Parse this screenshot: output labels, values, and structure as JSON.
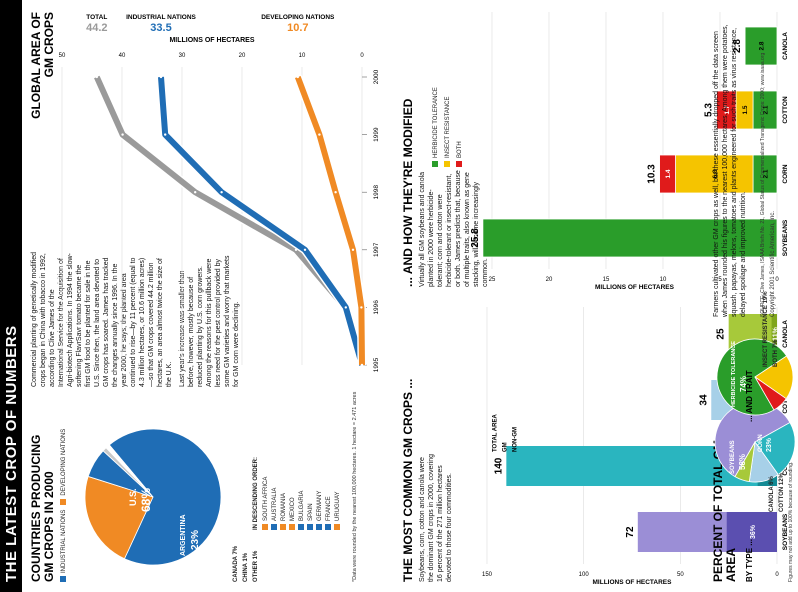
{
  "title": "THE LATEST CROP OF NUMBERS",
  "countries": {
    "heading": "COUNTRIES PRODUCING GM CROPS IN 2000",
    "legend": [
      "INDUSTRIAL NATIONS",
      "DEVELOPING NATIONS"
    ],
    "us_label": "U.S.",
    "us_pct": "68%",
    "argentina_label": "ARGENTINA",
    "argentina_pct": "23%",
    "canada": "CANADA 7%",
    "china": "CHINA 1%",
    "other": "OTHER 1%",
    "descending_title": "IN DESCENDING ORDER:",
    "descending": [
      "SOUTH AFRICA",
      "AUSTRALIA",
      "ROMANIA",
      "MEXICO",
      "BULGARIA",
      "SPAIN",
      "GERMANY",
      "FRANCE",
      "URUGUAY"
    ],
    "footnote": "*Data were rounded by the nearest 100,000 hectares.   1 hectare = 2.471 acres"
  },
  "intro": {
    "paragraph": "Commercial planting of genetically modified crops began in China with tobacco in 1992, according to Clive James of the International Service for the Acquisition of Agri-biotech Applications. In 1994 the slow-softening FlavrSavr tomato became the first GM food to be planted for sale in the U.S. Since then, the land area devoted to GM crops has soared. James has tracked the changes annually since 1996. In the year 2000, he says, the planted area continued to rise—by 11 percent (equal to 4.3 million hectares, or 10.6 million acres)—so that GM crops covered 44.2 million hectares, an area almost twice the size of the U.K.",
    "paragraph2": "Last year's increase was smaller than before, however, mostly because of reduced planting by U.S. corn growers. Among the reasons for this pullback were less need for the pest control provided by some GM varieties and worry that markets for GM corn were declining."
  },
  "common": {
    "heading": "THE MOST COMMON GM CROPS ...",
    "paragraph": "Soybeans, corn, cotton and canola were the dominant GM crops in 2000, covering 16 percent of the 271 million hectares devoted to those four commodities.",
    "legend": [
      "TOTAL AREA",
      "GM",
      "NON-GM"
    ],
    "ylabel": "MILLIONS OF HECTARES",
    "yticks": [
      "150",
      "100",
      "50",
      "0"
    ]
  },
  "modified": {
    "heading": "... AND HOW THEY'RE MODIFIED",
    "paragraph": "Virtually all GM soybeans and canola planted in 2000 were herbicide-tolerant; corn and cotton were herbicide-tolerant or insect-resistant, or both. James predicts that, because of multiple traits, also known as gene stacking, will become increasingly common.",
    "legend": [
      "HERBICIDE TOLERANCE",
      "INSECT RESISTANCE",
      "BOTH"
    ],
    "ylabel": "MILLIONS OF HECTARES",
    "yticks": [
      "25",
      "20",
      "15",
      "10",
      "5",
      "0"
    ]
  },
  "trend": {
    "heading": "GLOBAL AREA OF GM CROPS",
    "xlabel": "MILLIONS OF HECTARES",
    "xticks": [
      "50",
      "40",
      "30",
      "20",
      "10",
      "0"
    ],
    "years": [
      "1995",
      "1996",
      "1997",
      "1998",
      "1999",
      "2000"
    ],
    "total_value": "44.2",
    "total_label": "TOTAL",
    "industrial_value": "33.5",
    "industrial_label": "INDUSTRIAL NATIONS",
    "developing_value": "10.7",
    "developing_label": "DEVELOPING NATIONS"
  },
  "percent": {
    "heading": "PERCENT OF TOTAL GM AREA",
    "by_type": "BY TYPE ...",
    "soybeans": "SOYBEANS",
    "soy_pct": "58%",
    "corn": "CORN",
    "corn_pct": "23%",
    "canola": "CANOLA",
    "canola_pct": "6%",
    "cotton": "COTTON",
    "cotton_pct": "12%",
    "and_trait": "... AND TRAIT",
    "herbicide": "HERBICIDE TOLERANCE",
    "herb_pct": "74%",
    "insect": "INSECT RESISTANCE",
    "insect_pct": "19%",
    "both": "BOTH",
    "both_pct": "7%",
    "note": "Figures may not add up to 100% because of rounding.",
    "side_text": "Farmers cultivated other GM crops as well, but these essentially dropped off the data screen when James rounded his figures to the nearest 100,000 hectares. Among them were potatoes, squash, papayas, melons, tomatoes and plants engineered for such traits as virus resistance, delayed spoilage and improved nutrition."
  },
  "source": "SOURCE: Clive James, ISAAA Briefs No. 21, Global Status of Commercialized Transgenic Crops: 2000; www.isaaa.org",
  "credit": "Copyright 2001 Scientific American, Inc.",
  "colors": {
    "industrial": "#1f6db5",
    "developing": "#f08a24",
    "total": "#9a9a9a",
    "herbicide": "#2a9d2a",
    "insect": "#f5c400",
    "both": "#e01b1b",
    "soy": "#9b8ed6",
    "corn": "#2ab5bf",
    "cotton": "#a7d0e8",
    "canola": "#a7c93a"
  },
  "chart_data": [
    {
      "type": "pie",
      "title": "COUNTRIES PRODUCING GM CROPS IN 2000",
      "labels": [
        "U.S.",
        "ARGENTINA",
        "CANADA",
        "CHINA",
        "OTHER"
      ],
      "values": [
        68,
        23,
        7,
        1,
        1
      ]
    },
    {
      "type": "line",
      "title": "GLOBAL AREA OF GM CROPS",
      "xlabel": "",
      "ylabel": "MILLIONS OF HECTARES",
      "x": [
        1995,
        1996,
        1997,
        1998,
        1999,
        2000
      ],
      "ylim": [
        0,
        50
      ],
      "series": [
        {
          "name": "TOTAL",
          "values": [
            0,
            2.8,
            11,
            27.8,
            39.9,
            44.2
          ]
        },
        {
          "name": "INDUSTRIAL NATIONS",
          "values": [
            0,
            2.7,
            9.5,
            23.4,
            32.8,
            33.5
          ]
        },
        {
          "name": "DEVELOPING NATIONS",
          "values": [
            0,
            0.1,
            1.5,
            4.4,
            7.1,
            10.7
          ]
        }
      ]
    },
    {
      "type": "bar",
      "title": "THE MOST COMMON GM CROPS ...",
      "categories": [
        "SOYBEANS",
        "CORN",
        "COTTON",
        "CANOLA"
      ],
      "series": [
        {
          "name": "TOTAL AREA",
          "values": [
            72,
            140,
            34,
            25
          ]
        },
        {
          "name": "GM",
          "values": [
            26,
            10,
            5.3,
            2.8
          ]
        }
      ],
      "gm_percent_labels": [
        "36%",
        "7%",
        "16%",
        "11%"
      ],
      "ylabel": "MILLIONS OF HECTARES",
      "ylim": [
        0,
        150
      ]
    },
    {
      "type": "bar",
      "title": "... AND HOW THEY'RE MODIFIED",
      "categories": [
        "SOYBEANS",
        "CORN",
        "COTTON",
        "CANOLA"
      ],
      "totals": [
        25.8,
        10.3,
        5.3,
        2.8
      ],
      "series": [
        {
          "name": "HERBICIDE TOLERANCE",
          "values": [
            25.8,
            2.1,
            2.1,
            2.8
          ]
        },
        {
          "name": "INSECT RESISTANCE",
          "values": [
            0,
            6.8,
            1.5,
            0
          ]
        },
        {
          "name": "BOTH",
          "values": [
            0,
            1.4,
            1.7,
            0
          ]
        }
      ],
      "ylabel": "MILLIONS OF HECTARES",
      "ylim": [
        0,
        25
      ]
    },
    {
      "type": "pie",
      "title": "PERCENT OF TOTAL GM AREA BY TYPE",
      "labels": [
        "SOYBEANS",
        "CORN",
        "COTTON",
        "CANOLA"
      ],
      "values": [
        58,
        23,
        12,
        6
      ]
    },
    {
      "type": "pie",
      "title": "... AND TRAIT",
      "labels": [
        "HERBICIDE TOLERANCE",
        "INSECT RESISTANCE",
        "BOTH"
      ],
      "values": [
        74,
        19,
        7
      ]
    }
  ]
}
